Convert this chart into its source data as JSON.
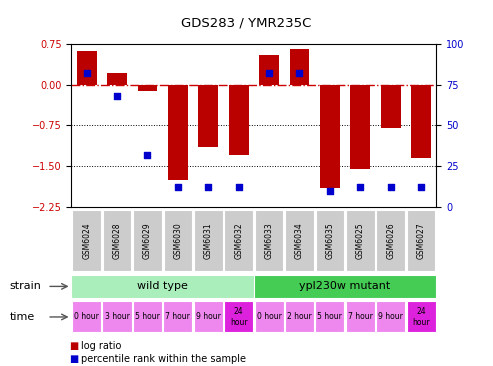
{
  "title": "GDS283 / YMR235C",
  "samples": [
    "GSM6024",
    "GSM6028",
    "GSM6029",
    "GSM6030",
    "GSM6031",
    "GSM6032",
    "GSM6033",
    "GSM6034",
    "GSM6035",
    "GSM6025",
    "GSM6026",
    "GSM6027"
  ],
  "log_ratio": [
    0.62,
    0.22,
    -0.12,
    -1.75,
    -1.15,
    -1.3,
    0.55,
    0.65,
    -1.9,
    -1.55,
    -0.8,
    -1.35
  ],
  "percentile": [
    82,
    68,
    32,
    12,
    12,
    12,
    82,
    82,
    10,
    12,
    12,
    12
  ],
  "ylim": [
    -2.25,
    0.75
  ],
  "yticks_left": [
    0.75,
    0,
    -0.75,
    -1.5,
    -2.25
  ],
  "yticks_right": [
    100,
    75,
    50,
    25,
    0
  ],
  "bar_color": "#bb0000",
  "percentile_color": "#0000cc",
  "zero_line_color": "#cc0000",
  "dotted_line_color": "#000000",
  "strain_wt_label": "wild type",
  "strain_mut_label": "ypl230w mutant",
  "strain_wt_color": "#aaeebb",
  "strain_mut_color": "#44cc55",
  "time_light_color": "#ee88ee",
  "time_dark_color": "#dd22dd",
  "time_labels_wt": [
    "0 hour",
    "3 hour",
    "5 hour",
    "7 hour",
    "9 hour",
    "24\nhour"
  ],
  "time_labels_mut": [
    "0 hour",
    "2 hour",
    "5 hour",
    "7 hour",
    "9 hour",
    "24\nhour"
  ],
  "wt_count": 6,
  "mut_count": 6,
  "legend_bar_label": "log ratio",
  "legend_pct_label": "percentile rank within the sample",
  "bg_color": "#ffffff",
  "tick_label_color_left": "#cc0000",
  "tick_label_color_right": "#0000cc",
  "xtick_bg_color": "#cccccc",
  "strain_label_text": "strain",
  "time_label_text": "time"
}
